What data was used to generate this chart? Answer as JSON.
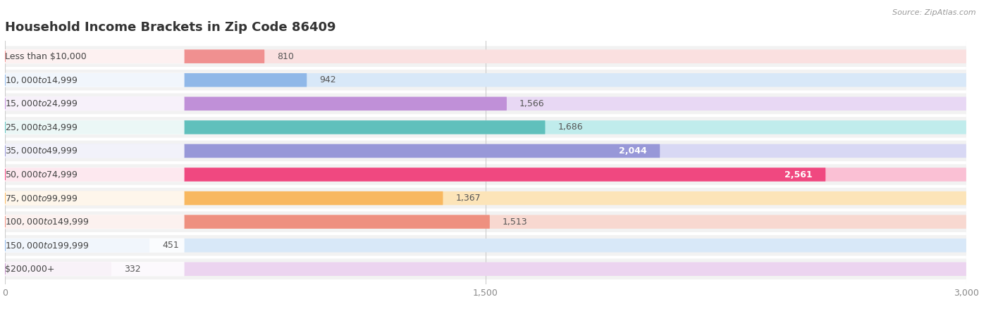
{
  "title": "Household Income Brackets in Zip Code 86409",
  "source": "Source: ZipAtlas.com",
  "categories": [
    "Less than $10,000",
    "$10,000 to $14,999",
    "$15,000 to $24,999",
    "$25,000 to $34,999",
    "$35,000 to $49,999",
    "$50,000 to $74,999",
    "$75,000 to $99,999",
    "$100,000 to $149,999",
    "$150,000 to $199,999",
    "$200,000+"
  ],
  "values": [
    810,
    942,
    1566,
    1686,
    2044,
    2561,
    1367,
    1513,
    451,
    332
  ],
  "bar_colors": [
    "#F09090",
    "#90B8E8",
    "#C090D8",
    "#60C0BC",
    "#9898D8",
    "#F04880",
    "#F8B860",
    "#EE9080",
    "#90B8E8",
    "#C898CC"
  ],
  "bar_background_colors": [
    "#FAE0E0",
    "#D8E8F8",
    "#E8D8F4",
    "#C0ECEC",
    "#D8D8F4",
    "#FAC0D4",
    "#FCE4B8",
    "#F8D8D0",
    "#D8E8F8",
    "#ECD4F0"
  ],
  "row_bg_color": "#f2f2f2",
  "xlim": [
    0,
    3000
  ],
  "xticks": [
    0,
    1500,
    3000
  ],
  "title_fontsize": 13,
  "label_fontsize": 9,
  "value_fontsize": 9,
  "bar_height": 0.58,
  "value_inside_threshold": 2000
}
